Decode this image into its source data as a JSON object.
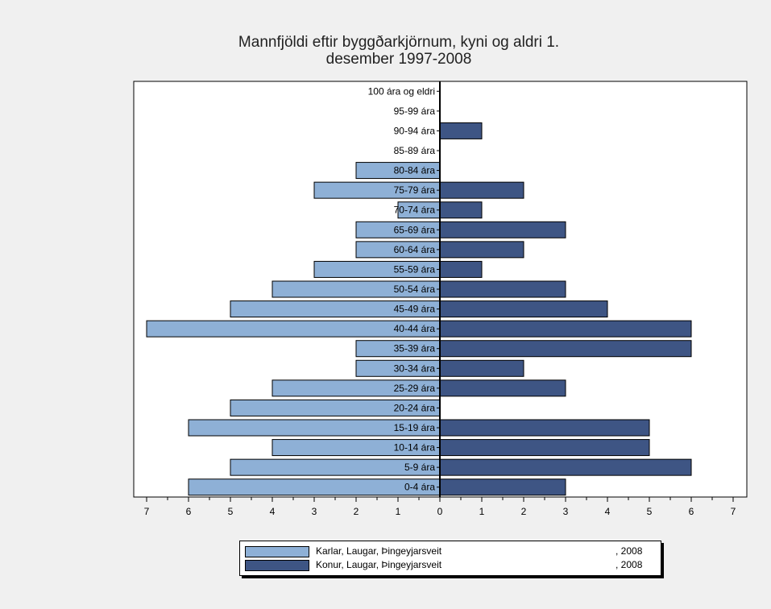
{
  "chart_data": {
    "type": "bar",
    "orientation": "horizontal-population-pyramid",
    "title": [
      "Mannfjöldi eftir byggðarkjörnum, kyni og aldri 1.",
      "desember 1997-2008"
    ],
    "categories": [
      "0-4 ára",
      "5-9 ára",
      "10-14 ára",
      "15-19 ára",
      "20-24 ára",
      "25-29 ára",
      "30-34 ára",
      "35-39 ára",
      "40-44 ára",
      "45-49 ára",
      "50-54 ára",
      "55-59 ára",
      "60-64 ára",
      "65-69 ára",
      "70-74 ára",
      "75-79 ára",
      "80-84 ára",
      "85-89 ára",
      "90-94 ára",
      "95-99 ára",
      "100 ára og eldri"
    ],
    "series": [
      {
        "name": "Karlar, Laugar, Þingeyjarsveit",
        "year": ", 2008",
        "color": "#8eb0d6",
        "side": "left",
        "values": [
          6,
          5,
          4,
          6,
          5,
          4,
          2,
          2,
          7,
          5,
          4,
          3,
          2,
          2,
          1,
          3,
          2,
          0,
          0,
          0,
          0
        ]
      },
      {
        "name": "Konur, Laugar, Þingeyjarsveit",
        "year": ", 2008",
        "color": "#3e5584",
        "side": "right",
        "values": [
          3,
          6,
          5,
          5,
          0,
          3,
          2,
          6,
          6,
          4,
          3,
          1,
          2,
          3,
          1,
          2,
          0,
          0,
          1,
          0,
          0
        ]
      }
    ],
    "x_ticks": [
      "7",
      "6",
      "5",
      "4",
      "3",
      "2",
      "1",
      "0",
      "1",
      "2",
      "3",
      "4",
      "5",
      "6",
      "7"
    ],
    "xlim": [
      -7,
      7
    ],
    "grid": false,
    "legend_position": "bottom"
  }
}
